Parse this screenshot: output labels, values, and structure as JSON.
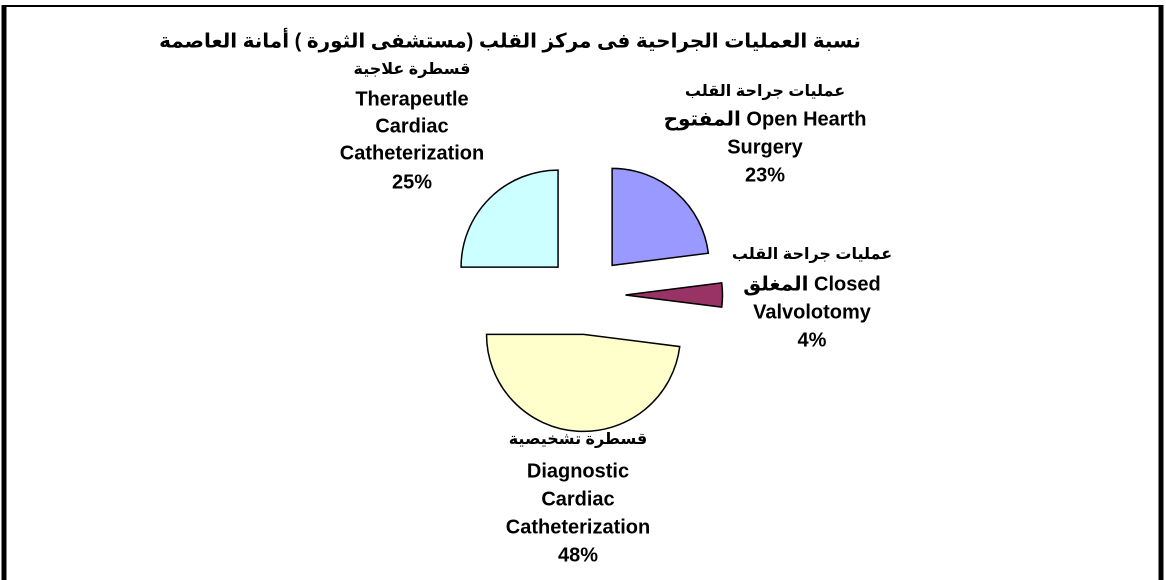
{
  "chart_data": {
    "type": "pie",
    "title": "نسبة العمليات الجراحية فى مركز القلب (مستشفى الثورة ) أمانة العاصمة",
    "categories": [
      [
        "عمليات جراحة القلب",
        "المفتوح Open Hearth",
        "Surgery"
      ],
      [
        "عمليات جراحة القلب",
        "المغلق  Closed",
        "Valvolotomy"
      ],
      [
        "قسطرة تشخيصية",
        "Diagnostic",
        "Cardiac",
        "Catheterization"
      ],
      [
        "قسطرة علاجية",
        "Therapeutle",
        "Cardiac",
        "Catheterization"
      ]
    ],
    "values": [
      23,
      4,
      48,
      25
    ],
    "value_labels": [
      "23%",
      "4%",
      "48%",
      "25%"
    ],
    "colors": [
      "#9999ff",
      "#993366",
      "#ffffcc",
      "#ccffff"
    ]
  }
}
